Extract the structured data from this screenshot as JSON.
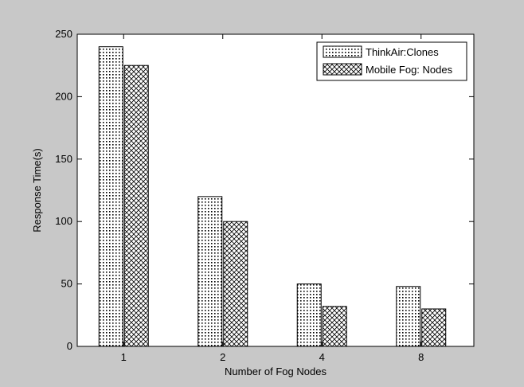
{
  "figure": {
    "background": "#c8c8c8",
    "axes_background": "#ffffff"
  },
  "chart_data": {
    "type": "bar",
    "title": "",
    "xlabel": "Number of Fog Nodes",
    "ylabel": "Response Time(s)",
    "categories": [
      "1",
      "2",
      "4",
      "8"
    ],
    "ylim": [
      0,
      250
    ],
    "yticks": [
      0,
      50,
      100,
      150,
      200,
      250
    ],
    "grid": false,
    "legend_position": "top-right",
    "series": [
      {
        "name": "ThinkAir:Clones",
        "values": [
          240,
          120,
          50,
          48
        ],
        "pattern": "dots"
      },
      {
        "name": "Mobile Fog: Nodes",
        "values": [
          225,
          100,
          32,
          30
        ],
        "pattern": "crosshatch"
      }
    ]
  }
}
